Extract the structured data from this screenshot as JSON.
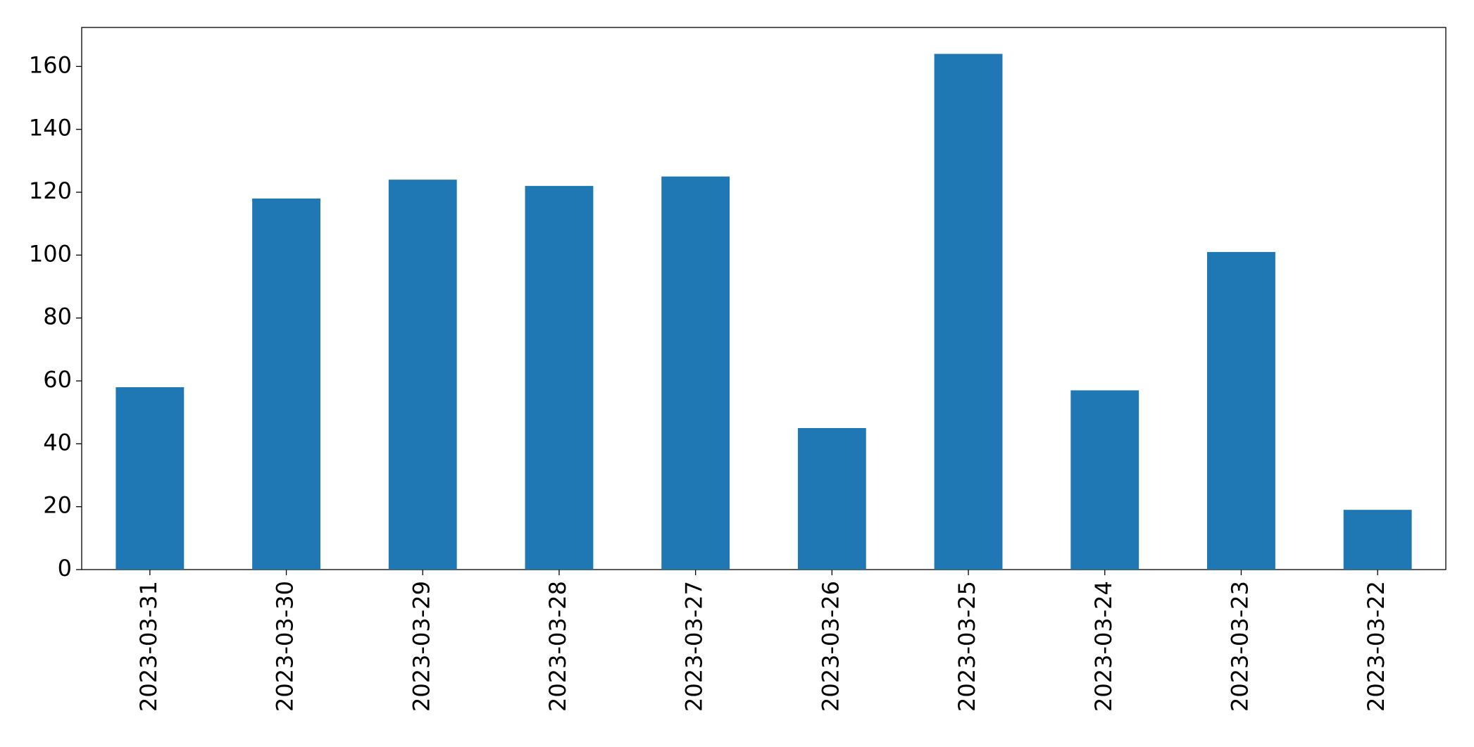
{
  "chart_data": {
    "type": "bar",
    "categories": [
      "2023-03-31",
      "2023-03-30",
      "2023-03-29",
      "2023-03-28",
      "2023-03-27",
      "2023-03-26",
      "2023-03-25",
      "2023-03-24",
      "2023-03-23",
      "2023-03-22"
    ],
    "values": [
      58,
      118,
      124,
      122,
      125,
      45,
      164,
      57,
      101,
      19
    ],
    "color": "#1f77b4",
    "ylim": [
      0,
      172.4
    ],
    "yticks": [
      0,
      20,
      40,
      60,
      80,
      100,
      120,
      140,
      160
    ],
    "grid": false
  }
}
